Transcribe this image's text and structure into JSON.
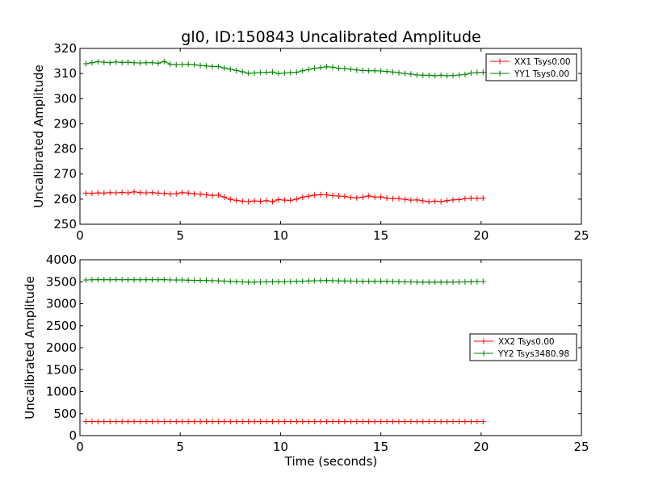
{
  "chart_data": [
    {
      "type": "line",
      "title": "gl0, ID:150843 Uncalibrated Amplitude",
      "xlabel": "",
      "ylabel": "Uncalibrated Amplitude",
      "xlim": [
        0,
        25
      ],
      "ylim": [
        250,
        320
      ],
      "xticks": [
        0,
        5,
        10,
        15,
        20,
        25
      ],
      "yticks": [
        250,
        260,
        270,
        280,
        290,
        300,
        310,
        320
      ],
      "legend_position": "top-right",
      "series": [
        {
          "name": "XX1 Tsys0.00",
          "color": "#ff0000",
          "x": [
            0.3,
            0.6,
            0.9,
            1.2,
            1.5,
            1.8,
            2.1,
            2.4,
            2.7,
            3.0,
            3.3,
            3.6,
            3.9,
            4.2,
            4.5,
            4.8,
            5.1,
            5.4,
            5.7,
            6.0,
            6.3,
            6.6,
            6.9,
            7.2,
            7.5,
            7.8,
            8.1,
            8.4,
            8.7,
            9.0,
            9.3,
            9.6,
            9.9,
            10.2,
            10.5,
            10.8,
            11.1,
            11.4,
            11.7,
            12.0,
            12.3,
            12.6,
            12.9,
            13.2,
            13.5,
            13.8,
            14.1,
            14.4,
            14.7,
            15.0,
            15.3,
            15.6,
            15.9,
            16.2,
            16.5,
            16.8,
            17.1,
            17.4,
            17.7,
            18.0,
            18.3,
            18.6,
            18.9,
            19.2,
            19.5,
            19.8,
            20.1
          ],
          "y": [
            262.4,
            262.3,
            262.5,
            262.4,
            262.6,
            262.5,
            262.7,
            262.5,
            262.9,
            262.6,
            262.5,
            262.6,
            262.4,
            262.3,
            262.0,
            262.2,
            262.6,
            262.4,
            262.1,
            262.0,
            261.7,
            261.5,
            261.6,
            260.8,
            259.9,
            259.5,
            259.2,
            259.0,
            259.3,
            259.1,
            259.4,
            259.0,
            259.8,
            259.6,
            259.5,
            260.0,
            260.8,
            261.2,
            261.6,
            261.8,
            261.7,
            261.4,
            261.2,
            261.1,
            260.7,
            260.5,
            260.8,
            261.3,
            260.8,
            260.9,
            260.4,
            260.2,
            260.2,
            259.9,
            259.6,
            259.7,
            259.3,
            259.0,
            259.2,
            259.0,
            259.4,
            259.7,
            259.8,
            260.2,
            260.4,
            260.3,
            260.4
          ]
        },
        {
          "name": "YY1 Tsys0.00",
          "color": "#008000",
          "x": [
            0.3,
            0.6,
            0.9,
            1.2,
            1.5,
            1.8,
            2.1,
            2.4,
            2.7,
            3.0,
            3.3,
            3.6,
            3.9,
            4.2,
            4.5,
            4.8,
            5.1,
            5.4,
            5.7,
            6.0,
            6.3,
            6.6,
            6.9,
            7.2,
            7.5,
            7.8,
            8.1,
            8.4,
            8.7,
            9.0,
            9.3,
            9.6,
            9.9,
            10.2,
            10.5,
            10.8,
            11.1,
            11.4,
            11.7,
            12.0,
            12.3,
            12.6,
            12.9,
            13.2,
            13.5,
            13.8,
            14.1,
            14.4,
            14.7,
            15.0,
            15.3,
            15.6,
            15.9,
            16.2,
            16.5,
            16.8,
            17.1,
            17.4,
            17.7,
            18.0,
            18.3,
            18.6,
            18.9,
            19.2,
            19.5,
            19.8,
            20.1
          ],
          "y": [
            313.9,
            314.3,
            314.7,
            314.5,
            314.3,
            314.6,
            314.4,
            314.5,
            314.3,
            314.2,
            314.3,
            314.3,
            314.1,
            314.8,
            313.7,
            313.5,
            313.6,
            313.7,
            313.5,
            313.2,
            313.0,
            312.8,
            312.8,
            312.2,
            311.7,
            311.2,
            310.7,
            310.1,
            310.2,
            310.4,
            310.5,
            310.6,
            310.0,
            310.2,
            310.4,
            310.5,
            311.1,
            311.6,
            312.1,
            312.4,
            312.7,
            312.5,
            312.1,
            312.0,
            311.7,
            311.4,
            311.2,
            311.1,
            311.1,
            311.0,
            310.8,
            310.6,
            310.3,
            310.0,
            309.8,
            309.4,
            309.3,
            309.3,
            309.1,
            309.3,
            309.1,
            309.2,
            309.4,
            309.6,
            310.2,
            310.4,
            310.5
          ]
        }
      ]
    },
    {
      "type": "line",
      "title": "",
      "xlabel": "Time (seconds)",
      "ylabel": "Uncalibrated Amplitude",
      "xlim": [
        0,
        25
      ],
      "ylim": [
        0,
        4000
      ],
      "xticks": [
        0,
        5,
        10,
        15,
        20,
        25
      ],
      "yticks": [
        0,
        500,
        1000,
        1500,
        2000,
        2500,
        3000,
        3500,
        4000
      ],
      "legend_position": "center-right",
      "series": [
        {
          "name": "XX2 Tsys0.00",
          "color": "#ff0000",
          "x": [
            0.3,
            0.6,
            0.9,
            1.2,
            1.5,
            1.8,
            2.1,
            2.4,
            2.7,
            3.0,
            3.3,
            3.6,
            3.9,
            4.2,
            4.5,
            4.8,
            5.1,
            5.4,
            5.7,
            6.0,
            6.3,
            6.6,
            6.9,
            7.2,
            7.5,
            7.8,
            8.1,
            8.4,
            8.7,
            9.0,
            9.3,
            9.6,
            9.9,
            10.2,
            10.5,
            10.8,
            11.1,
            11.4,
            11.7,
            12.0,
            12.3,
            12.6,
            12.9,
            13.2,
            13.5,
            13.8,
            14.1,
            14.4,
            14.7,
            15.0,
            15.3,
            15.6,
            15.9,
            16.2,
            16.5,
            16.8,
            17.1,
            17.4,
            17.7,
            18.0,
            18.3,
            18.6,
            18.9,
            19.2,
            19.5,
            19.8,
            20.1
          ],
          "y": [
            320,
            320,
            320,
            320,
            320,
            320,
            320,
            320,
            320,
            320,
            320,
            320,
            320,
            320,
            320,
            320,
            320,
            320,
            320,
            320,
            320,
            320,
            320,
            320,
            320,
            320,
            320,
            320,
            320,
            320,
            320,
            320,
            320,
            320,
            320,
            320,
            320,
            320,
            320,
            320,
            320,
            320,
            320,
            320,
            320,
            320,
            320,
            320,
            320,
            320,
            320,
            320,
            320,
            320,
            320,
            320,
            320,
            320,
            320,
            320,
            320,
            320,
            320,
            320,
            320,
            320,
            320
          ]
        },
        {
          "name": "YY2 Tsys3480.98",
          "color": "#008000",
          "x": [
            0.3,
            0.6,
            0.9,
            1.2,
            1.5,
            1.8,
            2.1,
            2.4,
            2.7,
            3.0,
            3.3,
            3.6,
            3.9,
            4.2,
            4.5,
            4.8,
            5.1,
            5.4,
            5.7,
            6.0,
            6.3,
            6.6,
            6.9,
            7.2,
            7.5,
            7.8,
            8.1,
            8.4,
            8.7,
            9.0,
            9.3,
            9.6,
            9.9,
            10.2,
            10.5,
            10.8,
            11.1,
            11.4,
            11.7,
            12.0,
            12.3,
            12.6,
            12.9,
            13.2,
            13.5,
            13.8,
            14.1,
            14.4,
            14.7,
            15.0,
            15.3,
            15.6,
            15.9,
            16.2,
            16.5,
            16.8,
            17.1,
            17.4,
            17.7,
            18.0,
            18.3,
            18.6,
            18.9,
            19.2,
            19.5,
            19.8,
            20.1
          ],
          "y": [
            3540,
            3545,
            3548,
            3545,
            3545,
            3548,
            3546,
            3547,
            3545,
            3545,
            3546,
            3546,
            3545,
            3548,
            3542,
            3540,
            3540,
            3535,
            3533,
            3530,
            3528,
            3525,
            3522,
            3515,
            3508,
            3500,
            3495,
            3490,
            3492,
            3495,
            3498,
            3500,
            3500,
            3500,
            3505,
            3508,
            3512,
            3518,
            3522,
            3525,
            3528,
            3524,
            3520,
            3518,
            3515,
            3512,
            3510,
            3510,
            3510,
            3510,
            3508,
            3505,
            3500,
            3498,
            3495,
            3492,
            3490,
            3490,
            3490,
            3490,
            3490,
            3492,
            3494,
            3496,
            3500,
            3502,
            3505
          ]
        }
      ]
    }
  ]
}
